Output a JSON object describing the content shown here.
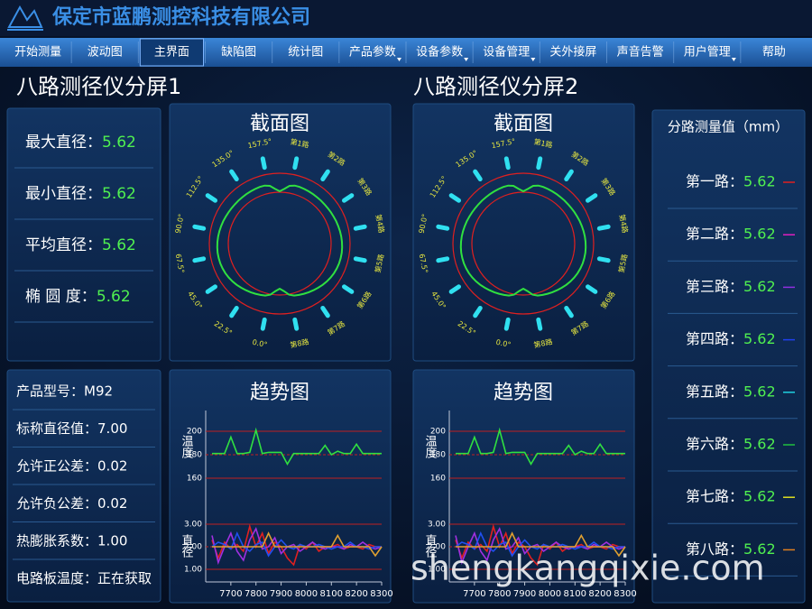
{
  "header": {
    "title": "保定市蓝鹏测控科技有限公司"
  },
  "menu": {
    "active": 2,
    "items": [
      {
        "label": "开始测量",
        "dropdown": false
      },
      {
        "label": "波动图",
        "dropdown": false
      },
      {
        "label": "主界面",
        "dropdown": false
      },
      {
        "label": "缺陷图",
        "dropdown": false
      },
      {
        "label": "统计图",
        "dropdown": false
      },
      {
        "label": "产品参数",
        "dropdown": true
      },
      {
        "label": "设备参数",
        "dropdown": true
      },
      {
        "label": "设备管理",
        "dropdown": true
      },
      {
        "label": "关外接屏",
        "dropdown": false
      },
      {
        "label": "声音告警",
        "dropdown": false
      },
      {
        "label": "用户管理",
        "dropdown": true
      },
      {
        "label": "帮助",
        "dropdown": false
      }
    ]
  },
  "summary": [
    {
      "label": "最大直径：",
      "value": "5.62"
    },
    {
      "label": "最小直径：",
      "value": "5.62"
    },
    {
      "label": "平均直径：",
      "value": "5.62"
    },
    {
      "label": "椭 圆 度：",
      "value": "5.62"
    }
  ],
  "product": [
    {
      "label": "产品型号：",
      "value": "M92"
    },
    {
      "label": "标称直径值：",
      "value": "7.00"
    },
    {
      "label": "允许正公差：",
      "value": "0.02"
    },
    {
      "label": "允许负公差：",
      "value": "0.02"
    },
    {
      "label": "热膨胀系数：",
      "value": "1.00"
    },
    {
      "label": "电路板温度：",
      "value": "正在获取"
    }
  ],
  "channels": {
    "title": "分路测量值（mm）",
    "rows": [
      {
        "label": "第一路：",
        "value": "5.62",
        "color": "#e02020"
      },
      {
        "label": "第二路：",
        "value": "5.62",
        "color": "#e020c0"
      },
      {
        "label": "第三路：",
        "value": "5.62",
        "color": "#9030e0"
      },
      {
        "label": "第四路：",
        "value": "5.62",
        "color": "#2040f0"
      },
      {
        "label": "第五路：",
        "value": "5.62",
        "color": "#20d0e0"
      },
      {
        "label": "第六路：",
        "value": "5.62",
        "color": "#20c040"
      },
      {
        "label": "第七路：",
        "value": "5.62",
        "color": "#e0e020"
      },
      {
        "label": "第八路：",
        "value": "5.62",
        "color": "#e08020"
      }
    ]
  },
  "screens": [
    {
      "title": "八路测径仪分屏1",
      "section": {
        "title": "截面图",
        "labels": [
          "第1路",
          "第2路",
          "第3路",
          "第4路",
          "第5路",
          "第6路",
          "第7路",
          "第8路",
          "0.0°",
          "22.5°",
          "45.0°",
          "67.5°",
          "90.0°",
          "112.5°",
          "135.0°",
          "157.5°"
        ]
      },
      "trend": {
        "title": "趋势图",
        "x": [
          7625,
          7650,
          7675,
          7700,
          7725,
          7750,
          7775,
          7800,
          7825,
          7850,
          7875,
          7900,
          7925,
          7950,
          7975,
          8000,
          8025,
          8050,
          8075,
          8100,
          8125,
          8150,
          8175,
          8200,
          8225,
          8250,
          8275,
          8300
        ],
        "xlim": [
          7600,
          8300
        ],
        "xticks": [
          7700,
          7800,
          7900,
          8000,
          8100,
          8200,
          8300
        ],
        "temperature": {
          "label": "温度",
          "ylim": [
            150,
            210
          ],
          "yticks": [
            160,
            180,
            200
          ],
          "series": [
            {
              "color": "#30e040",
              "values": [
                181,
                181,
                181,
                195,
                181,
                181,
                182,
                201,
                181,
                182,
                182,
                182,
                172,
                181,
                181,
                181,
                181,
                181,
                188,
                180,
                183,
                181,
                181,
                189,
                181,
                181,
                181,
                181
              ]
            }
          ]
        },
        "diameter": {
          "label": "直径",
          "ylim": [
            0.5,
            3.5
          ],
          "yticks": [
            {
              "value": 1,
              "label": "1.00"
            },
            {
              "value": 2,
              "label": "2.00"
            },
            {
              "value": 3,
              "label": "3.00"
            }
          ],
          "series": [
            {
              "color": "#e02020",
              "values": [
                2.3,
                1.5,
                2.2,
                1.9,
                2.1,
                1.8,
                2.9,
                2.0,
                2.6,
                1.7,
                2.2,
                2.0,
                1.5,
                1.2,
                2.1,
                1.9,
                2.2,
                1.8,
                2.0,
                2.0,
                2.1,
                1.9,
                2.0,
                2.0,
                1.9,
                2.1,
                2.0,
                2.0
              ]
            },
            {
              "color": "#a030e0",
              "values": [
                2.5,
                1.3,
                2.0,
                2.6,
                1.8,
                1.4,
                2.3,
                2.8,
                1.9,
                2.0,
                2.4,
                1.7,
                2.0,
                2.1,
                1.8,
                2.0,
                2.2,
                2.0,
                1.9,
                2.0,
                2.0,
                1.9,
                2.1,
                2.0,
                2.2,
                2.0,
                1.9,
                2.0
              ]
            },
            {
              "color": "#2050f0",
              "values": [
                2.0,
                2.2,
                2.1,
                1.9,
                2.6,
                2.0,
                1.8,
                2.1,
                2.2,
                1.6,
                2.0,
                2.3,
                2.0,
                1.9,
                2.1,
                2.0,
                2.0,
                2.1,
                2.0,
                1.9,
                2.0,
                2.0,
                2.2,
                2.0,
                2.0,
                1.9,
                2.0,
                2.0
              ]
            },
            {
              "color": "#e0a030",
              "values": [
                2,
                2,
                2,
                2,
                2,
                2,
                2,
                2,
                2,
                2.6,
                2,
                2,
                2,
                2,
                2,
                2,
                2,
                2,
                2,
                2,
                2.5,
                2,
                2,
                2,
                2,
                2,
                1.6,
                2
              ]
            }
          ]
        }
      }
    },
    {
      "title": "八路测径仪分屏2",
      "section": {
        "title": "截面图",
        "labels": [
          "第1路",
          "第2路",
          "第3路",
          "第4路",
          "第5路",
          "第6路",
          "第7路",
          "第8路",
          "0.0°",
          "22.5°",
          "45.0°",
          "67.5°",
          "90.0°",
          "112.5°",
          "135.0°",
          "157.5°"
        ]
      },
      "trend": {
        "title": "趋势图",
        "x": [
          7625,
          7650,
          7675,
          7700,
          7725,
          7750,
          7775,
          7800,
          7825,
          7850,
          7875,
          7900,
          7925,
          7950,
          7975,
          8000,
          8025,
          8050,
          8075,
          8100,
          8125,
          8150,
          8175,
          8200,
          8225,
          8250,
          8275,
          8300
        ],
        "xlim": [
          7600,
          8300
        ],
        "xticks": [
          7700,
          7800,
          7900,
          8000,
          8100,
          8200,
          8300
        ],
        "temperature": {
          "label": "温度",
          "ylim": [
            150,
            210
          ],
          "yticks": [
            160,
            180,
            200
          ],
          "series": [
            {
              "color": "#30e040",
              "values": [
                181,
                181,
                181,
                195,
                181,
                181,
                182,
                201,
                181,
                182,
                182,
                182,
                172,
                181,
                181,
                181,
                181,
                181,
                188,
                180,
                183,
                181,
                181,
                189,
                181,
                181,
                181,
                181
              ]
            }
          ]
        },
        "diameter": {
          "label": "直径",
          "ylim": [
            0.5,
            3.5
          ],
          "yticks": [
            {
              "value": 1,
              "label": "1.00"
            },
            {
              "value": 2,
              "label": "2.00"
            },
            {
              "value": 3,
              "label": "3.00"
            }
          ],
          "series": [
            {
              "color": "#e02020",
              "values": [
                2.3,
                1.5,
                2.2,
                1.9,
                2.1,
                1.8,
                2.9,
                2.0,
                2.6,
                1.7,
                2.2,
                2.0,
                1.5,
                1.2,
                2.1,
                1.9,
                2.2,
                1.8,
                2.0,
                2.0,
                2.1,
                1.9,
                2.0,
                2.0,
                1.9,
                2.1,
                2.0,
                2.0
              ]
            },
            {
              "color": "#a030e0",
              "values": [
                2.5,
                1.3,
                2.0,
                2.6,
                1.8,
                1.4,
                2.3,
                2.8,
                1.9,
                2.0,
                2.4,
                1.7,
                2.0,
                2.1,
                1.8,
                2.0,
                2.2,
                2.0,
                1.9,
                2.0,
                2.0,
                1.9,
                2.1,
                2.0,
                2.2,
                2.0,
                1.9,
                2.0
              ]
            },
            {
              "color": "#2050f0",
              "values": [
                2.0,
                2.2,
                2.1,
                1.9,
                2.6,
                2.0,
                1.8,
                2.1,
                2.2,
                1.6,
                2.0,
                2.3,
                2.0,
                1.9,
                2.1,
                2.0,
                2.0,
                2.1,
                2.0,
                1.9,
                2.0,
                2.0,
                2.2,
                2.0,
                2.0,
                1.9,
                2.0,
                2.0
              ]
            },
            {
              "color": "#e0a030",
              "values": [
                2,
                2,
                2,
                2,
                2,
                2,
                2,
                2,
                2,
                2.6,
                2,
                2,
                2,
                2,
                2,
                2,
                2,
                2,
                2,
                2,
                2.5,
                2,
                2,
                2,
                2,
                2,
                1.6,
                2
              ]
            }
          ]
        }
      }
    }
  ],
  "watermark": "shengkangqixie.com"
}
